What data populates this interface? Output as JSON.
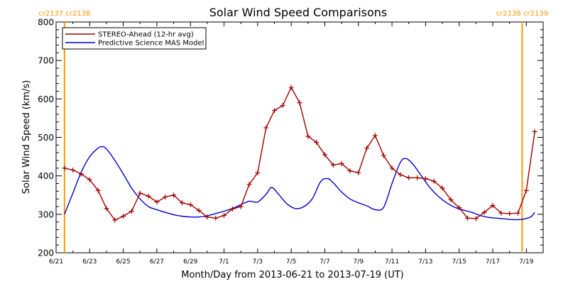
{
  "colors": {
    "stereo": "#a00000",
    "mas": "#0000cc",
    "rotation": "#ff9900",
    "axis": "#000000"
  },
  "chart_data": {
    "type": "line",
    "title": "Solar Wind Speed Comparisons",
    "xlabel": "Month/Day from 2013-06-21 to 2013-07-19 (UT)",
    "ylabel": "Solar Wind Speed (km/s)",
    "xlim": [
      "2013-06-21",
      "2013-07-19"
    ],
    "ylim": [
      200,
      800
    ],
    "x_ticks": [
      {
        "date": "2013-06-21",
        "label": "6/21"
      },
      {
        "date": "2013-06-23",
        "label": "6/23"
      },
      {
        "date": "2013-06-25",
        "label": "6/25"
      },
      {
        "date": "2013-06-27",
        "label": "6/27"
      },
      {
        "date": "2013-06-29",
        "label": "6/29"
      },
      {
        "date": "2013-07-01",
        "label": "7/1"
      },
      {
        "date": "2013-07-03",
        "label": "7/3"
      },
      {
        "date": "2013-07-05",
        "label": "7/5"
      },
      {
        "date": "2013-07-07",
        "label": "7/7"
      },
      {
        "date": "2013-07-09",
        "label": "7/9"
      },
      {
        "date": "2013-07-11",
        "label": "7/11"
      },
      {
        "date": "2013-07-13",
        "label": "7/13"
      },
      {
        "date": "2013-07-15",
        "label": "7/15"
      },
      {
        "date": "2013-07-17",
        "label": "7/17"
      },
      {
        "date": "2013-07-19",
        "label": "7/19"
      }
    ],
    "y_ticks": [
      200,
      300,
      400,
      500,
      600,
      700,
      800
    ],
    "legend_position": "top-left",
    "rotation_markers": [
      {
        "date": "2013-06-21 12:00",
        "labels": [
          "cr2137",
          "cr2138"
        ]
      },
      {
        "date": "2013-07-18 18:00",
        "labels": [
          "cr2138",
          "cr2139"
        ]
      }
    ],
    "series": [
      {
        "name": "STEREO-Ahead (12-hr avg)",
        "marker": "plus",
        "points": [
          [
            "2013-06-21 12:00",
            420
          ],
          [
            "2013-06-22 00:00",
            415
          ],
          [
            "2013-06-22 12:00",
            405
          ],
          [
            "2013-06-23 00:00",
            390
          ],
          [
            "2013-06-23 12:00",
            362
          ],
          [
            "2013-06-24 00:00",
            315
          ],
          [
            "2013-06-24 12:00",
            285
          ],
          [
            "2013-06-25 00:00",
            295
          ],
          [
            "2013-06-25 12:00",
            308
          ],
          [
            "2013-06-26 00:00",
            355
          ],
          [
            "2013-06-26 12:00",
            347
          ],
          [
            "2013-06-27 00:00",
            332
          ],
          [
            "2013-06-27 12:00",
            345
          ],
          [
            "2013-06-28 00:00",
            350
          ],
          [
            "2013-06-28 12:00",
            330
          ],
          [
            "2013-06-29 00:00",
            325
          ],
          [
            "2013-06-29 12:00",
            310
          ],
          [
            "2013-06-30 00:00",
            293
          ],
          [
            "2013-06-30 12:00",
            290
          ],
          [
            "2013-07-01 00:00",
            297
          ],
          [
            "2013-07-01 12:00",
            314
          ],
          [
            "2013-07-02 00:00",
            320
          ],
          [
            "2013-07-02 12:00",
            378
          ],
          [
            "2013-07-03 00:00",
            408
          ],
          [
            "2013-07-03 12:00",
            525
          ],
          [
            "2013-07-04 00:00",
            570
          ],
          [
            "2013-07-04 12:00",
            583
          ],
          [
            "2013-07-05 00:00",
            630
          ],
          [
            "2013-07-05 12:00",
            590
          ],
          [
            "2013-07-06 00:00",
            503
          ],
          [
            "2013-07-06 12:00",
            487
          ],
          [
            "2013-07-07 00:00",
            455
          ],
          [
            "2013-07-07 12:00",
            428
          ],
          [
            "2013-07-08 00:00",
            432
          ],
          [
            "2013-07-08 12:00",
            413
          ],
          [
            "2013-07-09 00:00",
            408
          ],
          [
            "2013-07-09 12:00",
            472
          ],
          [
            "2013-07-10 00:00",
            505
          ],
          [
            "2013-07-10 12:00",
            453
          ],
          [
            "2013-07-11 00:00",
            420
          ],
          [
            "2013-07-11 12:00",
            403
          ],
          [
            "2013-07-12 00:00",
            395
          ],
          [
            "2013-07-12 12:00",
            395
          ],
          [
            "2013-07-13 00:00",
            393
          ],
          [
            "2013-07-13 12:00",
            386
          ],
          [
            "2013-07-14 00:00",
            368
          ],
          [
            "2013-07-14 12:00",
            338
          ],
          [
            "2013-07-15 00:00",
            317
          ],
          [
            "2013-07-15 12:00",
            290
          ],
          [
            "2013-07-16 00:00",
            289
          ],
          [
            "2013-07-16 12:00",
            305
          ],
          [
            "2013-07-17 00:00",
            323
          ],
          [
            "2013-07-17 12:00",
            303
          ],
          [
            "2013-07-18 00:00",
            302
          ],
          [
            "2013-07-18 12:00",
            303
          ],
          [
            "2013-07-19 00:00",
            362
          ],
          [
            "2013-07-19 12:00",
            515
          ]
        ]
      },
      {
        "name": "Predictive Science MAS Model",
        "marker": "none",
        "points": [
          [
            "2013-06-21 12:00",
            300
          ],
          [
            "2013-06-22 00:00",
            355
          ],
          [
            "2013-06-22 12:00",
            410
          ],
          [
            "2013-06-23 00:00",
            450
          ],
          [
            "2013-06-23 12:00",
            472
          ],
          [
            "2013-06-23 18:00",
            476
          ],
          [
            "2013-06-24 00:00",
            470
          ],
          [
            "2013-06-24 12:00",
            440
          ],
          [
            "2013-06-25 00:00",
            405
          ],
          [
            "2013-06-25 12:00",
            368
          ],
          [
            "2013-06-26 00:00",
            340
          ],
          [
            "2013-06-26 12:00",
            320
          ],
          [
            "2013-06-27 00:00",
            312
          ],
          [
            "2013-06-27 12:00",
            305
          ],
          [
            "2013-06-28 00:00",
            299
          ],
          [
            "2013-06-28 12:00",
            295
          ],
          [
            "2013-06-29 00:00",
            293
          ],
          [
            "2013-06-29 12:00",
            293
          ],
          [
            "2013-06-30 00:00",
            296
          ],
          [
            "2013-06-30 12:00",
            302
          ],
          [
            "2013-07-01 00:00",
            308
          ],
          [
            "2013-07-01 12:00",
            315
          ],
          [
            "2013-07-02 00:00",
            325
          ],
          [
            "2013-07-02 12:00",
            334
          ],
          [
            "2013-07-03 00:00",
            332
          ],
          [
            "2013-07-03 12:00",
            352
          ],
          [
            "2013-07-03 20:00",
            370
          ],
          [
            "2013-07-04 06:00",
            352
          ],
          [
            "2013-07-04 18:00",
            327
          ],
          [
            "2013-07-05 06:00",
            315
          ],
          [
            "2013-07-05 18:00",
            320
          ],
          [
            "2013-07-06 06:00",
            340
          ],
          [
            "2013-07-06 18:00",
            385
          ],
          [
            "2013-07-07 04:00",
            393
          ],
          [
            "2013-07-07 12:00",
            382
          ],
          [
            "2013-07-08 00:00",
            358
          ],
          [
            "2013-07-08 12:00",
            340
          ],
          [
            "2013-07-09 00:00",
            330
          ],
          [
            "2013-07-09 12:00",
            322
          ],
          [
            "2013-07-10 00:00",
            312
          ],
          [
            "2013-07-10 12:00",
            318
          ],
          [
            "2013-07-11 00:00",
            380
          ],
          [
            "2013-07-11 12:00",
            435
          ],
          [
            "2013-07-11 20:00",
            445
          ],
          [
            "2013-07-12 06:00",
            430
          ],
          [
            "2013-07-12 18:00",
            400
          ],
          [
            "2013-07-13 06:00",
            370
          ],
          [
            "2013-07-13 18:00",
            347
          ],
          [
            "2013-07-14 06:00",
            330
          ],
          [
            "2013-07-14 18:00",
            318
          ],
          [
            "2013-07-15 06:00",
            311
          ],
          [
            "2013-07-15 18:00",
            305
          ],
          [
            "2013-07-16 06:00",
            297
          ],
          [
            "2013-07-16 18:00",
            292
          ],
          [
            "2013-07-17 06:00",
            290
          ],
          [
            "2013-07-17 18:00",
            288
          ],
          [
            "2013-07-18 06:00",
            286
          ],
          [
            "2013-07-18 18:00",
            287
          ],
          [
            "2013-07-19 06:00",
            293
          ],
          [
            "2013-07-19 12:00",
            305
          ]
        ]
      }
    ]
  }
}
